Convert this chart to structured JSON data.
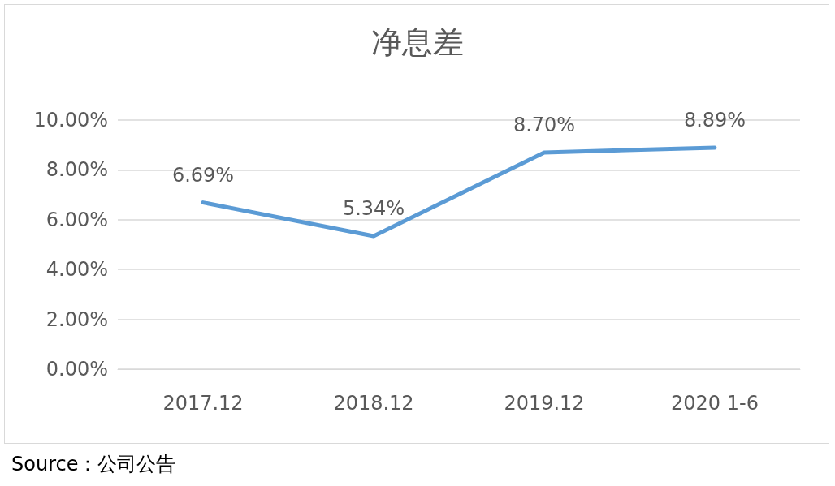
{
  "chart_data": {
    "type": "line",
    "title": "净息差",
    "categories": [
      "2017.12",
      "2018.12",
      "2019.12",
      "2020 1-6"
    ],
    "series": [
      {
        "color": "#5b9bd5",
        "values": [
          6.69,
          5.34,
          8.7,
          8.89
        ],
        "value_labels": [
          "6.69%",
          "5.34%",
          "8.70%",
          "8.89%"
        ]
      }
    ],
    "ylim": [
      0,
      10
    ],
    "yticks": [
      {
        "value": 0,
        "label": "0.00%"
      },
      {
        "value": 2,
        "label": "2.00%"
      },
      {
        "value": 4,
        "label": "4.00%"
      },
      {
        "value": 6,
        "label": "6.00%"
      },
      {
        "value": 8,
        "label": "8.00%"
      },
      {
        "value": 10,
        "label": "10.00%"
      }
    ],
    "grid": "y",
    "marker": "none",
    "line_style": "solid",
    "annotations": [
      "Source：公司公告"
    ]
  }
}
